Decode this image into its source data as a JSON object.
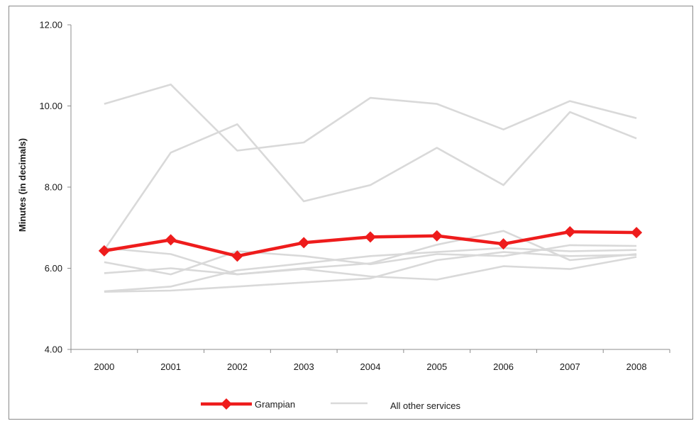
{
  "chart_data": {
    "type": "line",
    "title": "",
    "xlabel": "",
    "ylabel": "Minutes (in decimals)",
    "x": [
      "2000",
      "2001",
      "2002",
      "2003",
      "2004",
      "2005",
      "2006",
      "2007",
      "2008"
    ],
    "ylim": [
      4,
      12
    ],
    "yticks": [
      "4.00",
      "6.00",
      "8.00",
      "10.00",
      "12.00"
    ],
    "grid": false,
    "legend_position": "bottom",
    "colors": {
      "highlight": "#ee1c1c",
      "others": "#d9d9d9",
      "axis": "#8c8c8c"
    },
    "highlight_series": {
      "name": "Grampian",
      "values": [
        6.43,
        6.7,
        6.3,
        6.63,
        6.77,
        6.8,
        6.6,
        6.9,
        6.88
      ]
    },
    "other_series": [
      {
        "values": [
          10.05,
          10.53,
          8.9,
          9.1,
          10.2,
          10.05,
          9.42,
          10.12,
          9.7
        ]
      },
      {
        "values": [
          6.45,
          8.85,
          9.55,
          7.65,
          8.05,
          8.97,
          8.05,
          9.85,
          9.2
        ]
      },
      {
        "values": [
          6.5,
          6.35,
          5.85,
          6.0,
          6.12,
          6.58,
          6.92,
          6.2,
          6.35
        ]
      },
      {
        "values": [
          6.15,
          5.85,
          6.42,
          6.3,
          6.1,
          6.35,
          6.3,
          6.57,
          6.55
        ]
      },
      {
        "values": [
          5.88,
          6.0,
          5.85,
          5.98,
          5.8,
          5.72,
          6.05,
          5.98,
          6.28
        ]
      },
      {
        "values": [
          5.43,
          5.55,
          5.95,
          6.12,
          6.3,
          6.4,
          6.5,
          6.42,
          6.45
        ]
      },
      {
        "values": [
          5.42,
          5.45,
          5.55,
          5.65,
          5.75,
          6.2,
          6.4,
          6.3,
          6.33
        ]
      }
    ],
    "legend": [
      {
        "label": "Grampian",
        "style": "highlight"
      },
      {
        "label": "All other services",
        "style": "others"
      }
    ]
  }
}
